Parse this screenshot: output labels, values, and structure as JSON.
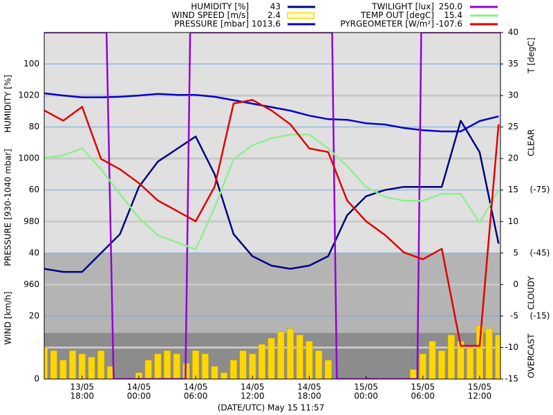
{
  "chart_data": {
    "type": "line",
    "xlabel": "(DATE/UTC) May 15 11:57",
    "xlim": [
      "13/05 14:00",
      "15/05 14:12"
    ],
    "xticks": [
      {
        "date": "13/05",
        "time": "18:00"
      },
      {
        "date": "14/05",
        "time": "00:00"
      },
      {
        "date": "14/05",
        "time": "06:00"
      },
      {
        "date": "14/05",
        "time": "12:00"
      },
      {
        "date": "14/05",
        "time": "18:00"
      },
      {
        "date": "15/05",
        "time": "00:00"
      },
      {
        "date": "15/05",
        "time": "06:00"
      },
      {
        "date": "15/05",
        "time": "12:00"
      }
    ],
    "axes": {
      "humidity": {
        "label": "HUMIDITY [%]",
        "ylim": [
          0,
          110
        ],
        "yticks": [
          40,
          60,
          80,
          100
        ]
      },
      "pressure": {
        "label": "PRESSURE [930-1040 mbar]",
        "ylim": [
          930,
          1040
        ],
        "yticks": [
          960,
          980,
          1000,
          1020
        ]
      },
      "wind": {
        "label": "WIND [km/h]",
        "ylim": [
          0,
          110
        ],
        "yticks": [
          0,
          20
        ]
      },
      "temperature": {
        "label": "T [degC]",
        "ylim": [
          -15,
          40
        ],
        "yticks": [
          -15,
          -10,
          -5,
          0,
          5,
          10,
          15,
          20,
          25,
          30,
          35,
          40
        ]
      },
      "pyrgeometer": {
        "ylim": [
          15,
          -150
        ],
        "yticks": [
          {
            "value": -75,
            "label": "(-75)"
          },
          {
            "value": -45,
            "label": "(-45)"
          },
          {
            "value": -15,
            "label": "(-15)"
          }
        ]
      },
      "twilight": {
        "ylim": [
          0,
          250
        ]
      }
    },
    "zones": [
      {
        "name": "CLEAR",
        "range": [
          -150,
          -45
        ],
        "color": "#e0e0e0"
      },
      {
        "name": "CLOUDY",
        "range": [
          -45,
          -7
        ],
        "color": "#b4b4b4"
      },
      {
        "name": "OVERCAST",
        "range": [
          -7,
          15
        ],
        "color": "#8c8c8c"
      }
    ],
    "x": [
      "13/05 14:00",
      "13/05 16:00",
      "13/05 18:00",
      "13/05 20:00",
      "13/05 22:00",
      "14/05 00:00",
      "14/05 02:00",
      "14/05 04:00",
      "14/05 06:00",
      "14/05 08:00",
      "14/05 10:00",
      "14/05 12:00",
      "14/05 14:00",
      "14/05 16:00",
      "14/05 18:00",
      "14/05 20:00",
      "14/05 22:00",
      "15/05 00:00",
      "15/05 02:00",
      "15/05 04:00",
      "15/05 06:00",
      "15/05 08:00",
      "15/05 10:00",
      "15/05 12:00",
      "15/05 14:00"
    ],
    "series": [
      {
        "name": "HUMIDITY [%]",
        "current": "43",
        "color": "#000080",
        "axis": "humidity",
        "legend": "left",
        "values": [
          35,
          34,
          34,
          40,
          46,
          61,
          69,
          73,
          77,
          65,
          46,
          39,
          36,
          35,
          36,
          39,
          52,
          58,
          60,
          61,
          61,
          61,
          82,
          72,
          43
        ]
      },
      {
        "name": "WIND SPEED [m/s]",
        "current": "2.4",
        "color": "#ffd700",
        "axis": "wind",
        "legend": "left",
        "kind": "bar",
        "x": [
          "13/05 14:00",
          "13/05 15:00",
          "13/05 16:00",
          "13/05 17:00",
          "13/05 18:00",
          "13/05 19:00",
          "13/05 20:00",
          "13/05 21:00",
          "13/05 22:00",
          "13/05 23:00",
          "14/05 00:00",
          "14/05 01:00",
          "14/05 02:00",
          "14/05 03:00",
          "14/05 04:00",
          "14/05 05:00",
          "14/05 06:00",
          "14/05 07:00",
          "14/05 08:00",
          "14/05 09:00",
          "14/05 10:00",
          "14/05 11:00",
          "14/05 12:00",
          "14/05 13:00",
          "14/05 14:00",
          "14/05 15:00",
          "14/05 16:00",
          "14/05 17:00",
          "14/05 18:00",
          "14/05 19:00",
          "14/05 20:00",
          "14/05 21:00",
          "14/05 22:00",
          "14/05 23:00",
          "15/05 00:00",
          "15/05 01:00",
          "15/05 02:00",
          "15/05 03:00",
          "15/05 04:00",
          "15/05 05:00",
          "15/05 06:00",
          "15/05 07:00",
          "15/05 08:00",
          "15/05 09:00",
          "15/05 10:00",
          "15/05 11:00",
          "15/05 12:00",
          "15/05 13:00",
          "15/05 14:00"
        ],
        "values": [
          10,
          9,
          6,
          9,
          8,
          7,
          9,
          4,
          0,
          0,
          2,
          6,
          8,
          9,
          8,
          5,
          9,
          8,
          4,
          2,
          6,
          9,
          8,
          11,
          13,
          15,
          16,
          14,
          12,
          9,
          6,
          0,
          0,
          0,
          0,
          0,
          0,
          0,
          0,
          3,
          8,
          12,
          9,
          14,
          12,
          10,
          17,
          16,
          14
        ]
      },
      {
        "name": "PRESSURE [mbar]",
        "current": "1013.6",
        "color": "#0000cc",
        "axis": "pressure",
        "legend": "left",
        "values": [
          1020.7,
          1020,
          1019.4,
          1019.4,
          1019.6,
          1020,
          1020.5,
          1020.2,
          1020.2,
          1019.6,
          1018.5,
          1017.4,
          1016.3,
          1015.2,
          1013.6,
          1012.5,
          1012.3,
          1011.2,
          1010.8,
          1009.7,
          1009,
          1008.6,
          1008.6,
          1011.9,
          1013.4
        ]
      },
      {
        "name": "TWILIGHT [lux]",
        "current": "250.0",
        "color": "#9400d3",
        "axis": "twilight",
        "legend": "right",
        "x": [
          "13/05 14:00",
          "13/05 20:35",
          "13/05 21:20",
          "14/05 04:55",
          "14/05 05:25",
          "14/05 20:25",
          "14/05 20:55",
          "15/05 05:25",
          "15/05 05:50",
          "15/05 14:12"
        ],
        "values": [
          250,
          250,
          0,
          0,
          250,
          250,
          0,
          0,
          250,
          250
        ]
      },
      {
        "name": "TEMP OUT [degC]",
        "current": "15.4",
        "color": "#90ee90",
        "axis": "temperature",
        "legend": "right",
        "values": [
          20.1,
          20.5,
          21.6,
          18.3,
          14.4,
          10.6,
          7.8,
          6.7,
          5.6,
          12.2,
          19.9,
          22.1,
          23.2,
          23.8,
          23.8,
          21.6,
          18.8,
          15.5,
          13.9,
          13.3,
          13.3,
          14.4,
          14.4,
          9.8,
          15
        ]
      },
      {
        "name": "PYRGEOMETER [W/m²]",
        "current": "-107.6",
        "color": "#e00000",
        "axis": "pyrgeometer",
        "legend": "right",
        "values": [
          -112.9,
          -108,
          -114.6,
          -89.8,
          -84.9,
          -78.3,
          -70,
          -65.1,
          -60.1,
          -76.6,
          -116.2,
          -117.9,
          -112.9,
          -106.3,
          -94.8,
          -93.1,
          -70,
          -60.1,
          -53.6,
          -45.3,
          -42,
          -47,
          -0.8,
          -0.8,
          -106.3
        ]
      }
    ]
  }
}
